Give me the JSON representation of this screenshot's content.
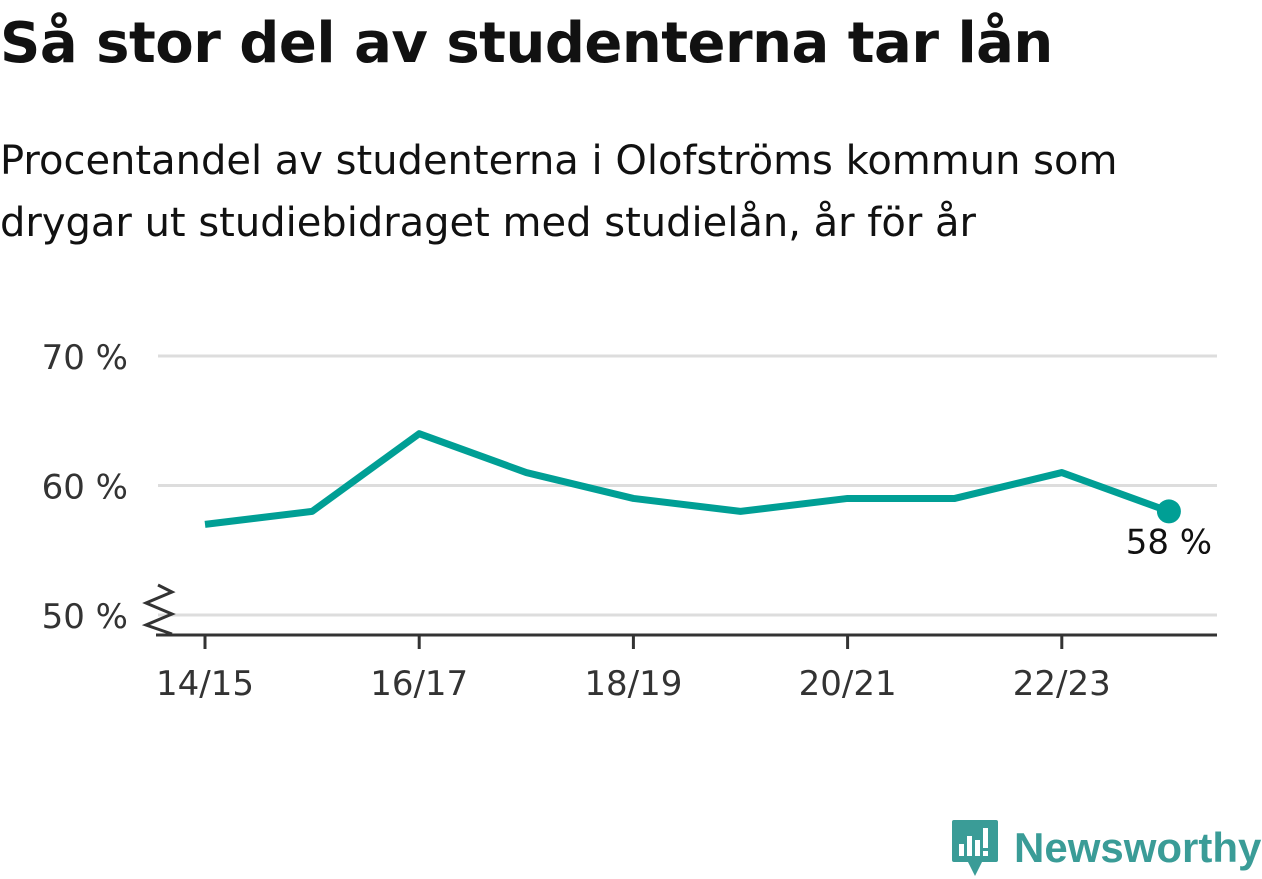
{
  "title": "Så stor del av studenterna tar lån",
  "subtitle": "Procentandel av studenterna i Olofströms kommun som drygar ut studiebidraget med studielån, år för år",
  "brand": {
    "name": "Newsworthy",
    "icon": "newsworthy-logo-icon"
  },
  "colors": {
    "line": "#009f95",
    "grid": "#dddddd",
    "axis": "#333333",
    "text": "#111111",
    "tick_text": "#333333",
    "brand": "#3a9c97"
  },
  "chart_data": {
    "type": "line",
    "x": [
      "14/15",
      "15/16",
      "16/17",
      "17/18",
      "18/19",
      "19/20",
      "20/21",
      "21/22",
      "22/23",
      "23/24"
    ],
    "x_tick_labels": [
      "14/15",
      "16/17",
      "18/19",
      "20/21",
      "22/23"
    ],
    "series": [
      {
        "values": [
          57,
          58,
          64,
          61,
          59,
          58,
          59,
          59,
          61,
          58
        ]
      }
    ],
    "y_ticks": [
      {
        "value": 50,
        "label": "50 %"
      },
      {
        "value": 60,
        "label": "60 %"
      },
      {
        "value": 70,
        "label": "70 %"
      }
    ],
    "ylim": [
      50,
      70
    ],
    "y_axis_break": true,
    "grid": true,
    "end_label": "58 %"
  }
}
